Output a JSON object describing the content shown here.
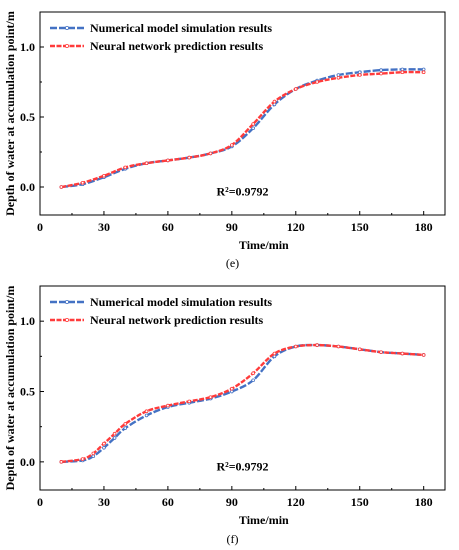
{
  "chart_data": [
    {
      "type": "line",
      "panel_label": "(e)",
      "xlabel": "Time/min",
      "ylabel": "Depth of water at accumulation point/m",
      "xlim": [
        0,
        190
      ],
      "ylim": [
        -0.2,
        1.25
      ],
      "xticks": [
        0,
        30,
        60,
        90,
        120,
        150,
        180
      ],
      "yticks": [
        0.0,
        0.5,
        1.0
      ],
      "xtick_labels": [
        "0",
        "30",
        "60",
        "90",
        "120",
        "150",
        "180"
      ],
      "ytick_labels": [
        "0.0",
        "0.5",
        "1.0"
      ],
      "legend_position": "top-left",
      "annotation": "R²=0.9792",
      "annotation_pos": [
        95,
        -0.06
      ],
      "series": [
        {
          "name": "Numerical model simulation results",
          "color": "#4472c4",
          "x": [
            10,
            20,
            30,
            40,
            50,
            60,
            70,
            80,
            90,
            100,
            110,
            120,
            130,
            140,
            150,
            160,
            170,
            180
          ],
          "y": [
            0.0,
            0.02,
            0.07,
            0.13,
            0.17,
            0.19,
            0.21,
            0.24,
            0.29,
            0.42,
            0.59,
            0.7,
            0.76,
            0.8,
            0.82,
            0.835,
            0.84,
            0.84
          ]
        },
        {
          "name": "Neural network prediction results",
          "color": "#ff3b3b",
          "x": [
            10,
            20,
            30,
            40,
            50,
            60,
            70,
            80,
            90,
            100,
            110,
            120,
            130,
            140,
            150,
            160,
            170,
            180
          ],
          "y": [
            0.0,
            0.03,
            0.08,
            0.14,
            0.17,
            0.19,
            0.21,
            0.24,
            0.3,
            0.45,
            0.61,
            0.7,
            0.75,
            0.78,
            0.8,
            0.81,
            0.82,
            0.82
          ]
        }
      ]
    },
    {
      "type": "line",
      "panel_label": "(f)",
      "xlabel": "Time/min",
      "ylabel": "Depth of water at accumulation point/m",
      "xlim": [
        0,
        190
      ],
      "ylim": [
        -0.2,
        1.25
      ],
      "xticks": [
        0,
        30,
        60,
        90,
        120,
        150,
        180
      ],
      "yticks": [
        0.0,
        0.5,
        1.0
      ],
      "xtick_labels": [
        "0",
        "30",
        "60",
        "90",
        "120",
        "150",
        "180"
      ],
      "ytick_labels": [
        "0.0",
        "0.5",
        "1.0"
      ],
      "legend_position": "top-left",
      "annotation": "R²=0.9792",
      "annotation_pos": [
        95,
        -0.06
      ],
      "series": [
        {
          "name": "Numerical model simulation results",
          "color": "#4472c4",
          "x": [
            10,
            20,
            25,
            30,
            35,
            40,
            50,
            60,
            70,
            80,
            90,
            100,
            110,
            120,
            130,
            140,
            150,
            160,
            170,
            180
          ],
          "y": [
            0.0,
            0.01,
            0.04,
            0.1,
            0.17,
            0.24,
            0.33,
            0.39,
            0.42,
            0.45,
            0.5,
            0.58,
            0.75,
            0.82,
            0.83,
            0.82,
            0.8,
            0.78,
            0.77,
            0.76
          ]
        },
        {
          "name": "Neural network prediction results",
          "color": "#ff3b3b",
          "x": [
            10,
            20,
            25,
            30,
            35,
            40,
            50,
            60,
            70,
            80,
            90,
            100,
            110,
            120,
            130,
            140,
            150,
            160,
            170,
            180
          ],
          "y": [
            0.0,
            0.02,
            0.06,
            0.13,
            0.2,
            0.27,
            0.36,
            0.4,
            0.43,
            0.46,
            0.52,
            0.63,
            0.77,
            0.82,
            0.83,
            0.82,
            0.8,
            0.78,
            0.77,
            0.76
          ]
        }
      ]
    }
  ]
}
